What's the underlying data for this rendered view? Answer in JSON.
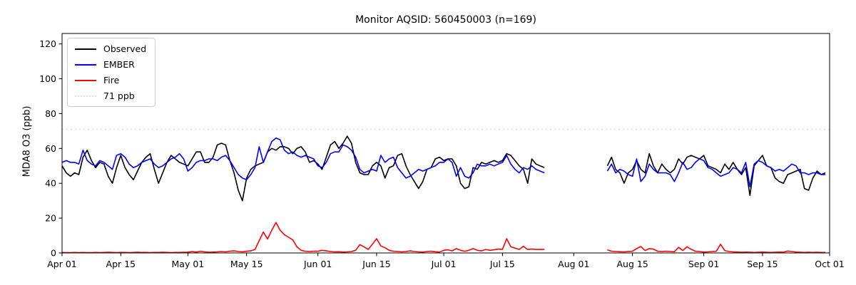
{
  "chart_data": {
    "type": "line",
    "title": "Monitor AQSID: 560450003 (n=169)",
    "n_points": 169,
    "xlabel": "",
    "ylabel": "MDA8 O3 (ppb)",
    "ylim": [
      0,
      126
    ],
    "grid": false,
    "legend_position": "upper left",
    "x_axis": {
      "total_days": 183,
      "start_label": "Apr 01",
      "end_label": "Oct 01"
    },
    "xticks": [
      {
        "label": "Apr 01",
        "day": 0
      },
      {
        "label": "Apr 15",
        "day": 14
      },
      {
        "label": "May 01",
        "day": 30
      },
      {
        "label": "May 15",
        "day": 44
      },
      {
        "label": "Jun 01",
        "day": 61
      },
      {
        "label": "Jun 15",
        "day": 75
      },
      {
        "label": "Jul 01",
        "day": 91
      },
      {
        "label": "Jul 15",
        "day": 105
      },
      {
        "label": "Aug 01",
        "day": 122
      },
      {
        "label": "Aug 15",
        "day": 136
      },
      {
        "label": "Sep 01",
        "day": 153
      },
      {
        "label": "Sep 15",
        "day": 167
      },
      {
        "label": "Oct 01",
        "day": 183
      }
    ],
    "yticks": [
      0,
      20,
      40,
      60,
      80,
      100,
      120
    ],
    "threshold": {
      "label": "71 ppb",
      "value": 71,
      "color": "#dcdcdc",
      "style": "dotted"
    },
    "series_meta": [
      {
        "name": "Observed",
        "color": "#000000"
      },
      {
        "name": "EMBER",
        "color": "#0000ff"
      },
      {
        "name": "Fire",
        "color": "#ff0000"
      }
    ],
    "segments": [
      {
        "start_day": 0,
        "start_date_label": "Apr 01",
        "end_date_label": "Jul 25",
        "Observed": [
          50,
          46,
          44,
          46,
          45,
          55,
          59,
          53,
          49,
          52,
          51,
          44,
          40,
          49,
          56,
          49,
          45,
          42,
          47,
          52,
          55,
          57,
          48,
          40,
          46,
          52,
          56,
          54,
          52,
          51,
          50,
          54,
          58,
          58,
          52,
          52,
          55,
          62,
          63,
          62,
          53,
          46,
          36,
          30,
          43,
          48,
          50,
          51,
          52,
          58,
          60,
          59,
          61,
          61,
          60,
          57,
          60,
          61,
          58,
          52,
          53,
          51,
          48,
          55,
          62,
          64,
          60,
          63,
          67,
          63,
          52,
          46,
          45,
          45,
          50,
          52,
          50,
          43,
          49,
          50,
          56,
          57,
          50,
          45,
          41,
          37,
          41,
          48,
          49,
          54,
          55,
          53,
          54,
          54,
          50,
          40,
          37,
          38,
          49,
          48,
          52,
          51,
          52,
          53,
          52,
          53,
          57,
          56,
          53,
          50,
          48,
          40,
          54,
          51,
          50,
          49
        ],
        "EMBER": [
          52,
          53,
          52,
          52,
          51,
          59,
          53,
          51,
          50,
          53,
          52,
          50,
          48,
          56,
          57,
          55,
          51,
          49,
          50,
          52,
          53,
          54,
          51,
          49,
          50,
          52,
          54,
          55,
          57,
          54,
          47,
          49,
          52,
          53,
          53,
          54,
          54,
          53,
          55,
          56,
          53,
          49,
          45,
          43,
          42,
          45,
          49,
          61,
          52,
          58,
          64,
          66,
          65,
          59,
          57,
          58,
          56,
          55,
          56,
          55,
          54,
          50,
          49,
          52,
          57,
          58,
          58,
          62,
          61,
          59,
          55,
          48,
          46,
          47,
          48,
          47,
          56,
          52,
          54,
          55,
          49,
          46,
          43,
          44,
          46,
          48,
          47,
          48,
          49,
          50,
          52,
          52,
          54,
          52,
          44,
          49,
          44,
          43,
          46,
          51,
          50,
          50,
          51,
          50,
          51,
          52,
          56,
          51,
          48,
          46,
          49,
          48,
          50,
          48,
          47,
          46
        ],
        "Fire": [
          0.3,
          0.2,
          0.2,
          0.3,
          0.2,
          0.3,
          0.2,
          0.2,
          0.3,
          0.2,
          0.3,
          0.4,
          0.3,
          0.2,
          0.3,
          0.3,
          0.2,
          0.3,
          0.4,
          0.3,
          0.3,
          0.2,
          0.3,
          0.3,
          0.4,
          0.3,
          0.2,
          0.3,
          0.3,
          0.4,
          0.4,
          0.8,
          0.5,
          1.0,
          0.6,
          0.4,
          0.5,
          0.6,
          0.8,
          0.6,
          1.0,
          1.2,
          0.8,
          0.6,
          1.0,
          1.2,
          2.0,
          7.0,
          12.0,
          8.0,
          13.0,
          17.5,
          13.0,
          10.5,
          9.0,
          7.5,
          3.5,
          1.5,
          1.0,
          0.8,
          1.0,
          1.0,
          1.5,
          1.2,
          0.8,
          0.6,
          0.7,
          0.5,
          0.6,
          0.8,
          1.5,
          4.8,
          3.5,
          2.0,
          5.0,
          8.2,
          4.0,
          3.0,
          1.5,
          1.0,
          0.8,
          0.6,
          0.8,
          1.2,
          0.8,
          0.6,
          0.5,
          0.8,
          1.0,
          0.7,
          0.5,
          1.5,
          1.8,
          1.2,
          2.5,
          1.5,
          1.0,
          1.5,
          2.5,
          1.5,
          1.2,
          2.0,
          1.5,
          1.8,
          2.2,
          2.0,
          8.2,
          3.5,
          2.8,
          2.0,
          3.8,
          2.0,
          2.2,
          2.0,
          2.0,
          2.0
        ]
      },
      {
        "start_day": 130,
        "start_date_label": "Aug 09",
        "end_date_label": "Sep 30",
        "Observed": [
          50,
          55,
          48,
          46,
          40,
          46,
          48,
          53,
          48,
          46,
          57,
          50,
          46,
          51,
          48,
          46,
          48,
          54,
          51,
          55,
          56,
          55,
          54,
          56,
          50,
          49,
          48,
          46,
          51,
          48,
          52,
          48,
          45,
          49,
          33,
          50,
          53,
          56,
          50,
          49,
          43,
          41,
          40,
          45,
          46,
          47,
          48,
          37,
          36,
          43,
          47,
          45,
          46
        ],
        "EMBER": [
          47,
          51,
          46,
          48,
          47,
          45,
          44,
          54,
          41,
          44,
          51,
          48,
          46,
          46,
          46,
          45,
          41,
          46,
          52,
          48,
          49,
          52,
          54,
          53,
          49,
          48,
          46,
          44,
          45,
          46,
          49,
          48,
          46,
          52,
          38,
          51,
          53,
          52,
          50,
          49,
          47,
          48,
          47,
          49,
          51,
          50,
          46,
          46,
          45,
          46,
          46,
          45,
          45
        ],
        "Fire": [
          1.8,
          1.0,
          0.8,
          0.7,
          0.6,
          0.8,
          1.0,
          2.5,
          3.7,
          1.4,
          2.5,
          2.2,
          1.0,
          0.8,
          1.0,
          0.8,
          0.7,
          3.2,
          1.4,
          3.5,
          2.1,
          1.0,
          0.8,
          0.5,
          0.6,
          0.8,
          1.0,
          5.0,
          1.4,
          0.8,
          0.6,
          0.5,
          0.4,
          0.5,
          0.4,
          0.3,
          0.4,
          0.5,
          0.4,
          0.3,
          0.4,
          0.5,
          0.4,
          1.1,
          0.8,
          0.5,
          0.4,
          0.3,
          0.4,
          0.3,
          0.4,
          0.3,
          0.3
        ]
      }
    ]
  }
}
